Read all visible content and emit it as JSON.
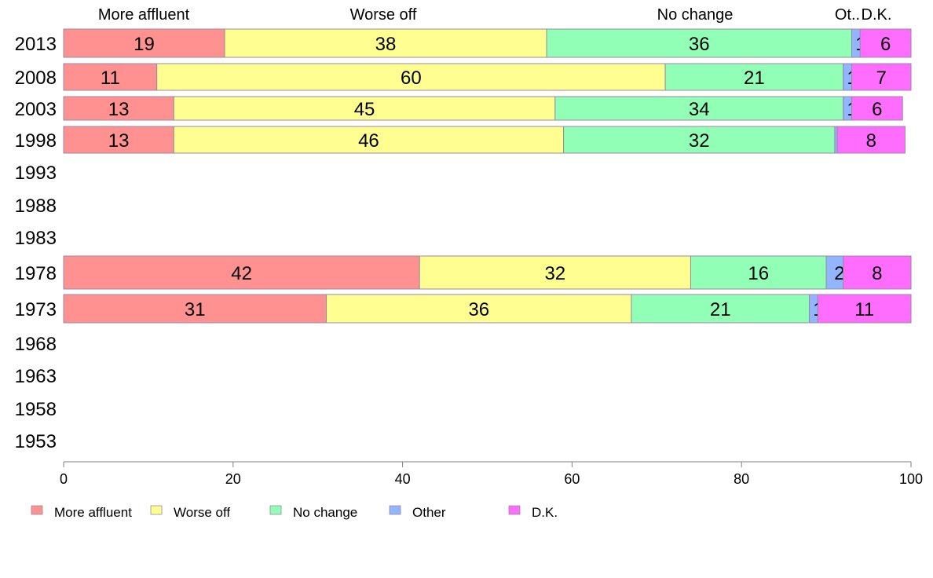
{
  "chart_data": {
    "type": "bar",
    "orientation": "horizontal",
    "stacked": true,
    "categories": [
      "2013",
      "2008",
      "2003",
      "1998",
      "1993",
      "1988",
      "1983",
      "1978",
      "1973",
      "1968",
      "1963",
      "1958",
      "1953"
    ],
    "series": [
      {
        "name": "More affluent",
        "color": "#ff9191",
        "values": [
          19,
          11,
          13,
          13,
          null,
          null,
          null,
          42,
          31,
          null,
          null,
          null,
          null
        ]
      },
      {
        "name": "Worse off",
        "color": "#ffff91",
        "values": [
          38,
          60,
          45,
          46,
          null,
          null,
          null,
          32,
          36,
          null,
          null,
          null,
          null
        ]
      },
      {
        "name": "No change",
        "color": "#91ffb6",
        "values": [
          36,
          21,
          34,
          32,
          null,
          null,
          null,
          16,
          21,
          null,
          null,
          null,
          null
        ]
      },
      {
        "name": "Other",
        "color": "#91b6ff",
        "values": [
          1,
          1,
          1,
          0.3,
          null,
          null,
          null,
          2,
          1,
          null,
          null,
          null,
          null
        ]
      },
      {
        "name": "D.K.",
        "color": "#ff6dff",
        "values": [
          6,
          7,
          6,
          8,
          null,
          null,
          null,
          8,
          11,
          null,
          null,
          null,
          null
        ]
      }
    ],
    "bar_labels": [
      [
        "19",
        "38",
        "36",
        "1",
        "6"
      ],
      [
        "11",
        "60",
        "21",
        "1",
        "7"
      ],
      [
        "13",
        "45",
        "34",
        "1",
        "6"
      ],
      [
        "13",
        "46",
        "32",
        "",
        "8"
      ],
      null,
      null,
      null,
      [
        "42",
        "32",
        "16",
        "2",
        "8"
      ],
      [
        "31",
        "36",
        "21",
        "1",
        "11"
      ],
      null,
      null,
      null,
      null
    ],
    "top_labels": [
      "More affluent",
      "Worse off",
      "No change",
      "Ot..",
      "D.K."
    ],
    "xlim": [
      0,
      100
    ],
    "xticks": [
      "0",
      "20",
      "40",
      "60",
      "80",
      "100"
    ],
    "grid": false,
    "legend": {
      "position": "bottom",
      "items": [
        "More affluent",
        "Worse off",
        "No change",
        "Other",
        "D.K."
      ]
    }
  }
}
